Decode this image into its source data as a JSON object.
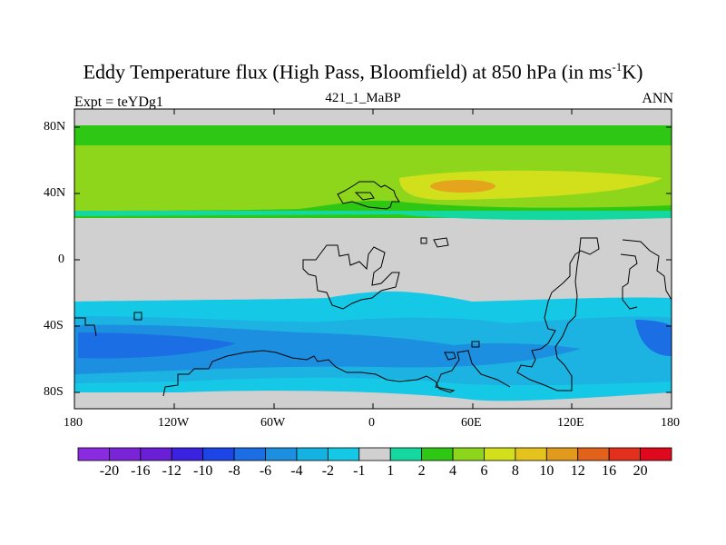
{
  "title": {
    "main": "Eddy Temperature flux (High Pass, Bloomfield) at 850 hPa (in ms",
    "sup": "-1",
    "unit": "K)"
  },
  "labels": {
    "left": "Expt = teYDg1",
    "center": "421_1_MaBP",
    "right": "ANN"
  },
  "axes": {
    "y_ticks": [
      "80N",
      "40N",
      "0",
      "40S",
      "80S"
    ],
    "x_ticks": [
      "180",
      "120W",
      "60W",
      "0",
      "60E",
      "120E",
      "180"
    ]
  },
  "colorbar": {
    "labels": [
      "-20",
      "-16",
      "-12",
      "-10",
      "-8",
      "-6",
      "-4",
      "-2",
      "-1",
      "1",
      "2",
      "4",
      "6",
      "8",
      "10",
      "12",
      "16",
      "20"
    ],
    "colors": [
      "#8a2be2",
      "#7a24d8",
      "#6a1fd6",
      "#3a22e0",
      "#1c45e8",
      "#1c6ee4",
      "#1c8fe0",
      "#14b2e2",
      "#14c8e6",
      "#d0d0d0",
      "#14d8a0",
      "#2ec814",
      "#8ed61c",
      "#d2e01c",
      "#e4c41c",
      "#e29a1c",
      "#e2621c",
      "#e2301c",
      "#e0081c"
    ]
  },
  "map_colors": {
    "neutral": "#d0d0d0",
    "green": "#2ec814",
    "lightgreen": "#8ed61c",
    "yellow": "#d2e01c",
    "orange": "#e4a41c",
    "cyan": "#14c8e6",
    "skyblue": "#1cb2e2",
    "blue": "#1c8fe0",
    "darkblue": "#1c6ee4",
    "teal": "#14d8a0"
  }
}
